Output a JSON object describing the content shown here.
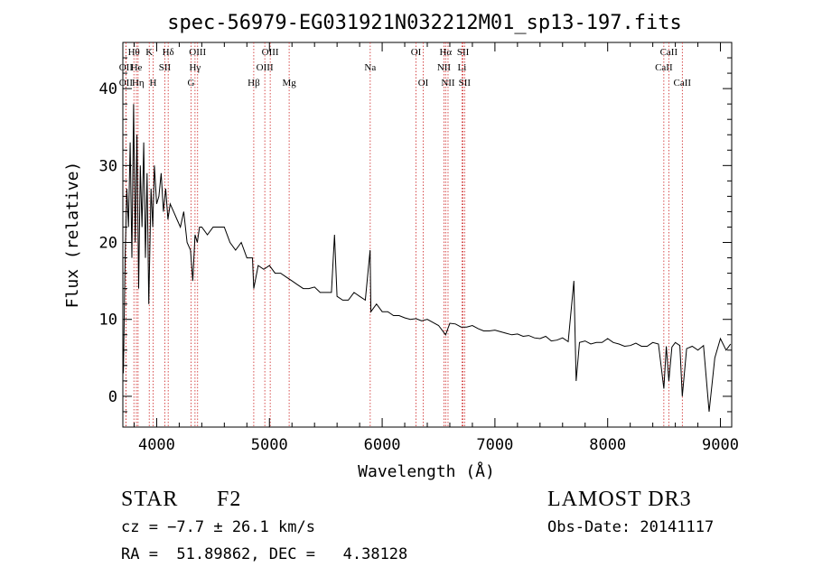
{
  "chart_data": {
    "type": "line",
    "title": "spec-56979-EG031921N032212M01_sp13-197.fits",
    "xlabel": "Wavelength (Å)",
    "ylabel": "Flux (relative)",
    "xlim": [
      3700,
      9100
    ],
    "ylim": [
      -4,
      46
    ],
    "xticks": [
      4000,
      5000,
      6000,
      7000,
      8000,
      9000
    ],
    "yticks": [
      0,
      10,
      20,
      30,
      40
    ],
    "series": [
      {
        "name": "flux",
        "x": [
          3705,
          3720,
          3735,
          3750,
          3765,
          3780,
          3795,
          3810,
          3825,
          3840,
          3855,
          3870,
          3885,
          3900,
          3915,
          3930,
          3950,
          3965,
          3980,
          4000,
          4020,
          4040,
          4060,
          4080,
          4100,
          4120,
          4150,
          4180,
          4210,
          4240,
          4270,
          4300,
          4320,
          4340,
          4360,
          4380,
          4400,
          4450,
          4500,
          4550,
          4600,
          4650,
          4700,
          4750,
          4800,
          4850,
          4861,
          4900,
          4950,
          5000,
          5050,
          5100,
          5150,
          5200,
          5250,
          5300,
          5350,
          5400,
          5450,
          5500,
          5550,
          5577,
          5600,
          5650,
          5700,
          5750,
          5800,
          5850,
          5893,
          5900,
          5950,
          6000,
          6050,
          6100,
          6150,
          6200,
          6250,
          6300,
          6350,
          6400,
          6450,
          6500,
          6563,
          6600,
          6650,
          6700,
          6750,
          6800,
          6850,
          6900,
          6950,
          7000,
          7050,
          7100,
          7150,
          7200,
          7250,
          7300,
          7350,
          7400,
          7450,
          7500,
          7550,
          7600,
          7650,
          7700,
          7720,
          7750,
          7800,
          7850,
          7900,
          7950,
          8000,
          8050,
          8100,
          8150,
          8200,
          8250,
          8300,
          8350,
          8400,
          8450,
          8498,
          8520,
          8542,
          8570,
          8600,
          8640,
          8662,
          8700,
          8750,
          8800,
          8850,
          8900,
          8950,
          9000,
          9050,
          9090
        ],
        "y": [
          3,
          18,
          27,
          22,
          33,
          18,
          38,
          20,
          34,
          14,
          30,
          22,
          33,
          18,
          29,
          12,
          27,
          22,
          30,
          25,
          26,
          29,
          24,
          27,
          23,
          25,
          24,
          23,
          22,
          24,
          20,
          19,
          15,
          21,
          20,
          22,
          22,
          21,
          22,
          22,
          22,
          20,
          19,
          20,
          18,
          18,
          14,
          17,
          16.5,
          17,
          16,
          16,
          15.5,
          15,
          14.5,
          14,
          14,
          14.2,
          13.5,
          13.5,
          13.5,
          21,
          13,
          12.5,
          12.5,
          13.5,
          13,
          12.5,
          19,
          11,
          12,
          11,
          11,
          10.5,
          10.5,
          10.2,
          10,
          10.1,
          9.8,
          10,
          9.6,
          9.2,
          8,
          9.5,
          9.4,
          9,
          9,
          9.2,
          8.8,
          8.5,
          8.5,
          8.6,
          8.4,
          8.2,
          8,
          8.1,
          7.8,
          7.9,
          7.6,
          7.5,
          7.8,
          7.2,
          7.3,
          7.6,
          7.1,
          15,
          2,
          7,
          7.2,
          6.8,
          7,
          7,
          7.5,
          7,
          6.8,
          6.5,
          6.6,
          6.9,
          6.5,
          6.5,
          7,
          6.8,
          1,
          6.5,
          2,
          6.4,
          7,
          6.6,
          0,
          6.2,
          6.5,
          6,
          6.6,
          -2,
          5,
          7.5,
          6,
          6.8
        ]
      }
    ],
    "line_marks": [
      {
        "label": "OII",
        "wavelength": 3727,
        "row": 2
      },
      {
        "label": "OII",
        "wavelength": 3727,
        "row": 3
      },
      {
        "label": "Hθ",
        "wavelength": 3798,
        "row": 1
      },
      {
        "label": "He",
        "wavelength": 3820,
        "row": 2
      },
      {
        "label": "Hη",
        "wavelength": 3835,
        "row": 3
      },
      {
        "label": "K",
        "wavelength": 3934,
        "row": 1
      },
      {
        "label": "H",
        "wavelength": 3968,
        "row": 3
      },
      {
        "label": "SII",
        "wavelength": 4072,
        "row": 2
      },
      {
        "label": "Hδ",
        "wavelength": 4102,
        "row": 1
      },
      {
        "label": "OIII",
        "wavelength": 4363,
        "row": 1
      },
      {
        "label": "Hγ",
        "wavelength": 4340,
        "row": 2
      },
      {
        "label": "G",
        "wavelength": 4305,
        "row": 3
      },
      {
        "label": "Hβ",
        "wavelength": 4861,
        "row": 3
      },
      {
        "label": "OIII",
        "wavelength": 5007,
        "row": 1
      },
      {
        "label": "OIII",
        "wavelength": 4959,
        "row": 2
      },
      {
        "label": "Mg",
        "wavelength": 5175,
        "row": 3
      },
      {
        "label": "Na",
        "wavelength": 5894,
        "row": 2
      },
      {
        "label": "OI",
        "wavelength": 6300,
        "row": 1
      },
      {
        "label": "OI",
        "wavelength": 6364,
        "row": 3
      },
      {
        "label": "Hα",
        "wavelength": 6563,
        "row": 1
      },
      {
        "label": "NII",
        "wavelength": 6548,
        "row": 2
      },
      {
        "label": "NII",
        "wavelength": 6584,
        "row": 3
      },
      {
        "label": "SII",
        "wavelength": 6717,
        "row": 1
      },
      {
        "label": "Li",
        "wavelength": 6708,
        "row": 2
      },
      {
        "label": "SII",
        "wavelength": 6731,
        "row": 3
      },
      {
        "label": "CaII",
        "wavelength": 8542,
        "row": 1
      },
      {
        "label": "CaII",
        "wavelength": 8498,
        "row": 2
      },
      {
        "label": "CaII",
        "wavelength": 8662,
        "row": 3
      }
    ],
    "colors": {
      "spectrum": "#000000",
      "line_marks": "#cc2222",
      "axes": "#000000"
    }
  },
  "info": {
    "object_class": "STAR",
    "subclass": "F2",
    "survey": "LAMOST DR3",
    "cz": "cz = −7.7 ± 26.1 km/s",
    "obs_date": "Obs-Date: 20141117",
    "coords": "RA =  51.89862, DEC =   4.38128"
  }
}
